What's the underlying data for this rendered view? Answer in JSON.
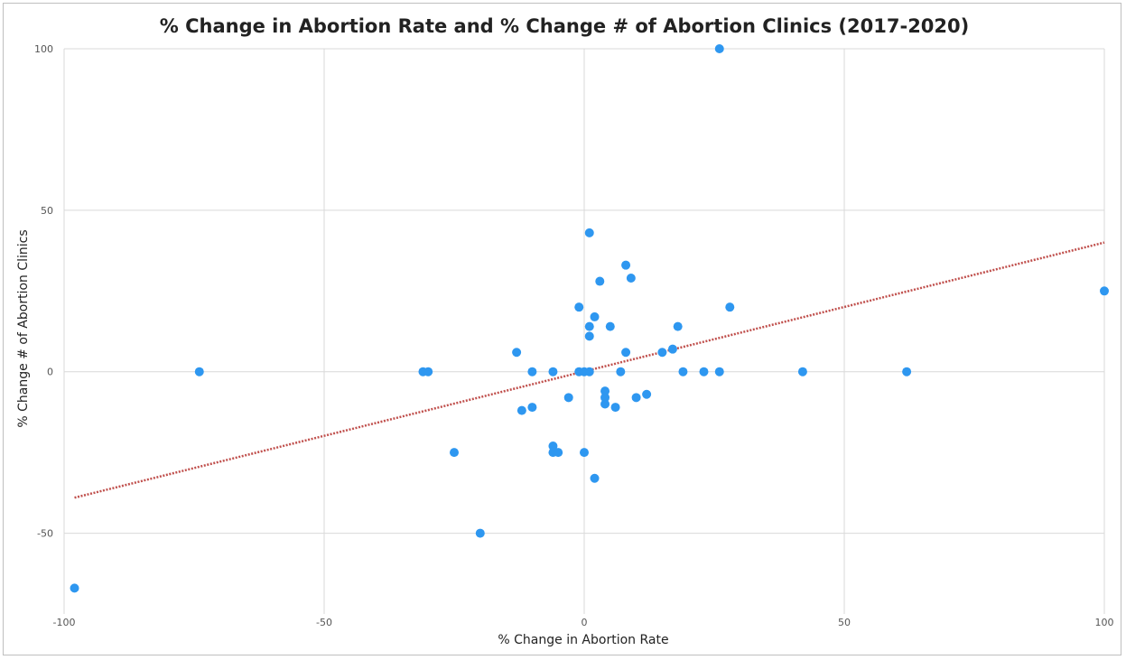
{
  "chart_data": {
    "type": "scatter",
    "title": "% Change in Abortion Rate and % Change # of Abortion Clinics (2017-2020)",
    "xlabel": "% Change in Abortion Rate",
    "ylabel": "% Change # of Abortion Clinics",
    "xlim": [
      -100,
      100
    ],
    "ylim": [
      -75,
      100
    ],
    "x_ticks": [
      -100,
      -50,
      0,
      50,
      100
    ],
    "y_ticks": [
      -50,
      0,
      50,
      100
    ],
    "grid": true,
    "point_color": "#2e97f0",
    "trendline": {
      "type": "linear",
      "style": "dotted",
      "color": "#c0504d",
      "x": [
        -98,
        100
      ],
      "y": [
        -39,
        40
      ]
    },
    "points": [
      {
        "x": 26,
        "y": 100
      },
      {
        "x": 1,
        "y": 43
      },
      {
        "x": 8,
        "y": 33
      },
      {
        "x": 9,
        "y": 29
      },
      {
        "x": 3,
        "y": 28
      },
      {
        "x": -1,
        "y": 20
      },
      {
        "x": 28,
        "y": 20
      },
      {
        "x": 2,
        "y": 17
      },
      {
        "x": 100,
        "y": 25
      },
      {
        "x": 1,
        "y": 14
      },
      {
        "x": 5,
        "y": 14
      },
      {
        "x": 18,
        "y": 14
      },
      {
        "x": 1,
        "y": 11
      },
      {
        "x": 17,
        "y": 7
      },
      {
        "x": -13,
        "y": 6
      },
      {
        "x": 8,
        "y": 6
      },
      {
        "x": 15,
        "y": 6
      },
      {
        "x": -74,
        "y": 0
      },
      {
        "x": -31,
        "y": 0
      },
      {
        "x": -30,
        "y": 0
      },
      {
        "x": -10,
        "y": 0
      },
      {
        "x": -6,
        "y": 0
      },
      {
        "x": -1,
        "y": 0
      },
      {
        "x": 0,
        "y": 0
      },
      {
        "x": 1,
        "y": 0
      },
      {
        "x": 7,
        "y": 0
      },
      {
        "x": 19,
        "y": 0
      },
      {
        "x": 23,
        "y": 0
      },
      {
        "x": 26,
        "y": 0
      },
      {
        "x": 42,
        "y": 0
      },
      {
        "x": 62,
        "y": 0
      },
      {
        "x": 4,
        "y": -6
      },
      {
        "x": 12,
        "y": -7
      },
      {
        "x": -3,
        "y": -8
      },
      {
        "x": 4,
        "y": -8
      },
      {
        "x": 10,
        "y": -8
      },
      {
        "x": 4,
        "y": -10
      },
      {
        "x": -10,
        "y": -11
      },
      {
        "x": 6,
        "y": -11
      },
      {
        "x": -12,
        "y": -12
      },
      {
        "x": -6,
        "y": -23
      },
      {
        "x": -25,
        "y": -25
      },
      {
        "x": -6,
        "y": -25
      },
      {
        "x": -5,
        "y": -25
      },
      {
        "x": 0,
        "y": -25
      },
      {
        "x": 2,
        "y": -33
      },
      {
        "x": -20,
        "y": -50
      },
      {
        "x": -98,
        "y": -67
      }
    ]
  }
}
